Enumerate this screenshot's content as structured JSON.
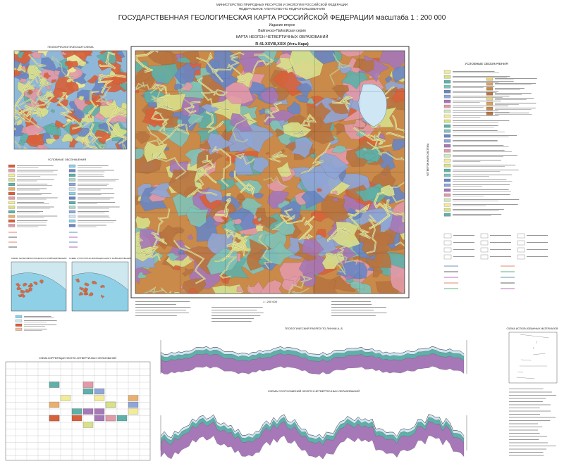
{
  "header": {
    "ministry": "МИНИСТЕРСТВО ПРИРОДНЫХ РЕСУРСОВ И ЭКОЛОГИИ РОССИЙСКОЙ ФЕДЕРАЦИИ",
    "agency": "ФЕДЕРАЛЬНОЕ АГЕНТСТВО ПО НЕДРОПОЛЬЗОВАНИЮ",
    "title": "ГОСУДАРСТВЕННАЯ ГЕОЛОГИЧЕСКАЯ КАРТА РОССИЙСКОЙ ФЕДЕРАЦИИ масштаба 1 : 200 000",
    "edition": "Издание второе",
    "series": "Вайгачско-Пайхойская серия",
    "map_name": "КАРТА НЕОГЕН-ЧЕТВЕРТИЧНЫХ ОБРАЗОВАНИЙ",
    "sheet": "R-41-XXVIII,XXIX (Усть-Кара)"
  },
  "panels": {
    "geomorph": "ГЕОМОРФОЛОГИЧЕСКАЯ СХЕМА",
    "legend_left": "УСЛОВНЫЕ ОБОЗНАЧЕНИЯ",
    "legend_right": "УСЛОВНЫЕ ОБОЗНАЧЕНИЯ",
    "geomorph_zoning": "СХЕМА ГЕОМОРФОЛОГИЧЕСКОГО РАЙОНИРОВАНИЯ",
    "structural_zoning": "СХЕМА СТРУКТУРНО-ФОРМАЦИОННОГО РАЙОНИРОВАНИЯ",
    "scale": "1 : 200 000",
    "section": "ГЕОЛОГИЧЕСКИЙ РАЗРЕЗ ПО ЛИНИИ А–Б",
    "relations": "СХЕМА СООТНОШЕНИЙ НЕОГЕН-ЧЕТВЕРТИЧНЫХ ОБРАЗОВАНИЙ",
    "correlation": "СХЕМА КОРРЕЛЯЦИИ НЕОГЕН-ЧЕТВЕРТИЧНЫХ ОБРАЗОВАНИЙ",
    "materials": "СХЕМА ИСПОЛЬЗОВАННЫХ МАТЕРИАЛОВ",
    "system": "ЧЕТВЕРТИЧНАЯ СИСТЕМА"
  }
}
